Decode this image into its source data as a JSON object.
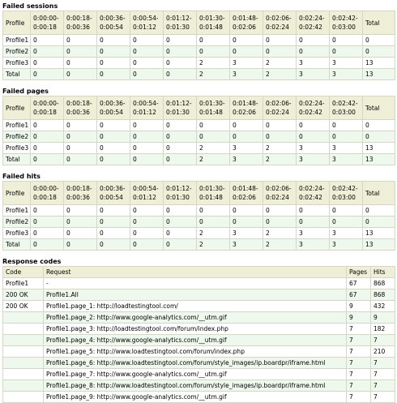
{
  "periods": {
    "header": [
      "Profile",
      "0:00:00-0:00:18",
      "0:00:18-0:00:36",
      "0:00:36-0:00:54",
      "0:00:54-0:01:12",
      "0:01:12-0:01:30",
      "0:01:30-0:01:48",
      "0:01:48-0:02:06",
      "0:02:06-0:02:24",
      "0:02:24-0:02:42",
      "0:02:42-0:03:00",
      "Total"
    ]
  },
  "sections": [
    {
      "title": "Failed sessions",
      "rows": [
        [
          "Profile1",
          0,
          0,
          0,
          0,
          0,
          0,
          0,
          0,
          0,
          0,
          0
        ],
        [
          "Profile2",
          0,
          0,
          0,
          0,
          0,
          0,
          0,
          0,
          0,
          0,
          0
        ],
        [
          "Profile3",
          0,
          0,
          0,
          0,
          0,
          2,
          3,
          2,
          3,
          3,
          13
        ],
        [
          "Total",
          0,
          0,
          0,
          0,
          0,
          2,
          3,
          2,
          3,
          3,
          13
        ]
      ]
    },
    {
      "title": "Failed pages",
      "rows": [
        [
          "Profile1",
          0,
          0,
          0,
          0,
          0,
          0,
          0,
          0,
          0,
          0,
          0
        ],
        [
          "Profile2",
          0,
          0,
          0,
          0,
          0,
          0,
          0,
          0,
          0,
          0,
          0
        ],
        [
          "Profile3",
          0,
          0,
          0,
          0,
          0,
          2,
          3,
          2,
          3,
          3,
          13
        ],
        [
          "Total",
          0,
          0,
          0,
          0,
          0,
          2,
          3,
          2,
          3,
          3,
          13
        ]
      ]
    },
    {
      "title": "Failed hits",
      "rows": [
        [
          "Profile1",
          0,
          0,
          0,
          0,
          0,
          0,
          0,
          0,
          0,
          0,
          0
        ],
        [
          "Profile2",
          0,
          0,
          0,
          0,
          0,
          0,
          0,
          0,
          0,
          0,
          0
        ],
        [
          "Profile3",
          0,
          0,
          0,
          0,
          0,
          2,
          3,
          2,
          3,
          3,
          13
        ],
        [
          "Total",
          0,
          0,
          0,
          0,
          0,
          2,
          3,
          2,
          3,
          3,
          13
        ]
      ]
    }
  ],
  "response": {
    "title": "Response codes",
    "header": [
      "Code",
      "Request",
      "Pages",
      "Hits"
    ],
    "rows": [
      [
        "Profile1",
        "-",
        67,
        868
      ],
      [
        "200 OK",
        "Profile1.All",
        67,
        868
      ],
      [
        "200 OK",
        "Profile1.page_1: http://loadtestingtool.com/",
        9,
        432
      ],
      [
        null,
        "Profile1.page_2: http://www.google-analytics.com/__utm.gif",
        9,
        9
      ],
      [
        null,
        "Profile1.page_3: http://loadtestingtool.com/forum/index.php",
        7,
        182
      ],
      [
        null,
        "Profile1.page_4: http://www.google-analytics.com/__utm.gif",
        7,
        7
      ],
      [
        null,
        "Profile1.page_5: http://www.loadtestingtool.com/forum/index.php",
        7,
        210
      ],
      [
        null,
        "Profile1.page_6: http://www.loadtestingtool.com/forum/style_images/ip.boardpr/iframe.html",
        7,
        7
      ],
      [
        null,
        "Profile1.page_7: http://www.google-analytics.com/__utm.gif",
        7,
        7
      ],
      [
        null,
        "Profile1.page_8: http://www.loadtestingtool.com/forum/style_images/ip.boardpr/iframe.html",
        7,
        7
      ],
      [
        null,
        "Profile1.page_9: http://www.google-analytics.com/__utm.gif",
        7,
        7
      ]
    ]
  }
}
